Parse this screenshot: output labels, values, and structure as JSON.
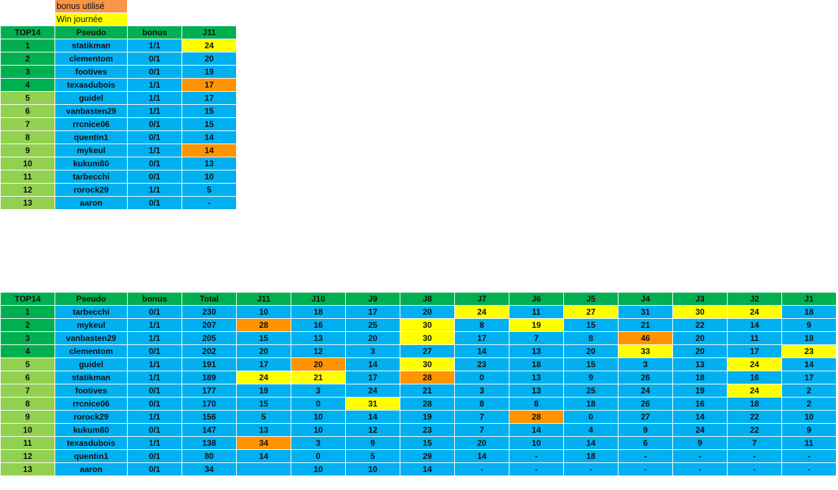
{
  "legend": {
    "bonus_label": "bonus utilisé",
    "bonus_color": "#f79646",
    "win_label": "Win journée",
    "win_color": "#ffff00"
  },
  "colors": {
    "header": "#00b050",
    "top4": "#00b050",
    "rest": "#92d050",
    "cell": "#00b0f0",
    "bonus": "#ff9400",
    "win": "#ffff00"
  },
  "table1": {
    "headers": [
      "TOP14",
      "Pseudo",
      "bonus",
      "J11"
    ],
    "rows": [
      {
        "rank": "1",
        "pseudo": "statikman",
        "bonus": "1/1",
        "j11": "24",
        "hl": "yellow"
      },
      {
        "rank": "2",
        "pseudo": "clementom",
        "bonus": "0/1",
        "j11": "20",
        "hl": ""
      },
      {
        "rank": "3",
        "pseudo": "footives",
        "bonus": "0/1",
        "j11": "19",
        "hl": ""
      },
      {
        "rank": "4",
        "pseudo": "texasdubois",
        "bonus": "1/1",
        "j11": "17",
        "hl": "orange"
      },
      {
        "rank": "5",
        "pseudo": "guidel",
        "bonus": "1/1",
        "j11": "17",
        "hl": ""
      },
      {
        "rank": "6",
        "pseudo": "vanbasten29",
        "bonus": "1/1",
        "j11": "15",
        "hl": ""
      },
      {
        "rank": "7",
        "pseudo": "rrcnice06",
        "bonus": "0/1",
        "j11": "15",
        "hl": ""
      },
      {
        "rank": "8",
        "pseudo": "quentin1",
        "bonus": "0/1",
        "j11": "14",
        "hl": ""
      },
      {
        "rank": "9",
        "pseudo": "mykeul",
        "bonus": "1/1",
        "j11": "14",
        "hl": "orange"
      },
      {
        "rank": "10",
        "pseudo": "kukum80",
        "bonus": "0/1",
        "j11": "13",
        "hl": ""
      },
      {
        "rank": "11",
        "pseudo": "tarbecchi",
        "bonus": "0/1",
        "j11": "10",
        "hl": ""
      },
      {
        "rank": "12",
        "pseudo": "rorock29",
        "bonus": "1/1",
        "j11": "5",
        "hl": ""
      },
      {
        "rank": "13",
        "pseudo": "aaron",
        "bonus": "0/1",
        "j11": "-",
        "hl": ""
      }
    ]
  },
  "table2": {
    "headers": [
      "TOP14",
      "Pseudo",
      "bonus",
      "Total",
      "J11",
      "J10",
      "J9",
      "J8",
      "J7",
      "J6",
      "J5",
      "J4",
      "J3",
      "J2",
      "J1"
    ],
    "rows": [
      {
        "rank": "1",
        "pseudo": "tarbecchi",
        "bonus": "0/1",
        "total": "230",
        "days": [
          "10",
          "18",
          "17",
          "20",
          "24",
          "11",
          "27",
          "31",
          "30",
          "24",
          "18"
        ],
        "hl": [
          "",
          "",
          "",
          "",
          "yellow",
          "",
          "yellow",
          "",
          "yellow",
          "yellow",
          ""
        ]
      },
      {
        "rank": "2",
        "pseudo": "mykeul",
        "bonus": "1/1",
        "total": "207",
        "days": [
          "28",
          "16",
          "25",
          "30",
          "8",
          "19",
          "15",
          "21",
          "22",
          "14",
          "9"
        ],
        "hl": [
          "orange",
          "",
          "",
          "yellow",
          "",
          "yellow",
          "",
          "",
          "",
          "",
          ""
        ]
      },
      {
        "rank": "3",
        "pseudo": "vanbasten29",
        "bonus": "1/1",
        "total": "205",
        "days": [
          "15",
          "13",
          "20",
          "30",
          "17",
          "7",
          "8",
          "46",
          "20",
          "11",
          "18"
        ],
        "hl": [
          "",
          "",
          "",
          "yellow",
          "",
          "",
          "",
          "orange",
          "",
          "",
          ""
        ]
      },
      {
        "rank": "4",
        "pseudo": "clementom",
        "bonus": "0/1",
        "total": "202",
        "days": [
          "20",
          "12",
          "3",
          "27",
          "14",
          "13",
          "20",
          "33",
          "20",
          "17",
          "23"
        ],
        "hl": [
          "",
          "",
          "",
          "",
          "",
          "",
          "",
          "yellow",
          "",
          "",
          "yellow"
        ]
      },
      {
        "rank": "5",
        "pseudo": "guidel",
        "bonus": "1/1",
        "total": "191",
        "days": [
          "17",
          "20",
          "14",
          "30",
          "23",
          "18",
          "15",
          "3",
          "13",
          "24",
          "14"
        ],
        "hl": [
          "",
          "orange",
          "",
          "yellow",
          "",
          "",
          "",
          "",
          "",
          "yellow",
          ""
        ]
      },
      {
        "rank": "6",
        "pseudo": "statikman",
        "bonus": "1/1",
        "total": "189",
        "days": [
          "24",
          "21",
          "17",
          "28",
          "0",
          "13",
          "9",
          "26",
          "18",
          "16",
          "17"
        ],
        "hl": [
          "yellow",
          "yellow",
          "",
          "orange",
          "",
          "",
          "",
          "",
          "",
          "",
          ""
        ]
      },
      {
        "rank": "7",
        "pseudo": "footives",
        "bonus": "0/1",
        "total": "177",
        "days": [
          "19",
          "3",
          "24",
          "21",
          "3",
          "13",
          "25",
          "24",
          "19",
          "24",
          "2"
        ],
        "hl": [
          "",
          "",
          "",
          "",
          "",
          "",
          "",
          "",
          "",
          "yellow",
          ""
        ]
      },
      {
        "rank": "8",
        "pseudo": "rrcnice06",
        "bonus": "0/1",
        "total": "170",
        "days": [
          "15",
          "0",
          "31",
          "28",
          "8",
          "8",
          "18",
          "26",
          "16",
          "18",
          "2"
        ],
        "hl": [
          "",
          "",
          "yellow",
          "",
          "",
          "",
          "",
          "",
          "",
          "",
          ""
        ]
      },
      {
        "rank": "9",
        "pseudo": "rorock29",
        "bonus": "1/1",
        "total": "156",
        "days": [
          "5",
          "10",
          "14",
          "19",
          "7",
          "28",
          "0",
          "27",
          "14",
          "22",
          "10"
        ],
        "hl": [
          "",
          "",
          "",
          "",
          "",
          "orange",
          "",
          "",
          "",
          "",
          ""
        ]
      },
      {
        "rank": "10",
        "pseudo": "kukum80",
        "bonus": "0/1",
        "total": "147",
        "days": [
          "13",
          "10",
          "12",
          "23",
          "7",
          "14",
          "4",
          "9",
          "24",
          "22",
          "9"
        ],
        "hl": [
          "",
          "",
          "",
          "",
          "",
          "",
          "",
          "",
          "",
          "",
          ""
        ]
      },
      {
        "rank": "11",
        "pseudo": "texasdubois",
        "bonus": "1/1",
        "total": "138",
        "days": [
          "34",
          "3",
          "9",
          "15",
          "20",
          "10",
          "14",
          "6",
          "9",
          "7",
          "11"
        ],
        "hl": [
          "orange",
          "",
          "",
          "",
          "",
          "",
          "",
          "",
          "",
          "",
          ""
        ]
      },
      {
        "rank": "12",
        "pseudo": "quentin1",
        "bonus": "0/1",
        "total": "80",
        "days": [
          "14",
          "0",
          "5",
          "29",
          "14",
          "-",
          "18",
          "-",
          "-",
          "-",
          "-"
        ],
        "hl": [
          "",
          "",
          "",
          "",
          "",
          "",
          "",
          "",
          "",
          "",
          ""
        ]
      },
      {
        "rank": "13",
        "pseudo": "aaron",
        "bonus": "0/1",
        "total": "34",
        "days": [
          "",
          "10",
          "10",
          "14",
          "-",
          "-",
          "-",
          "-",
          "-",
          "-",
          "-"
        ],
        "hl": [
          "",
          "",
          "",
          "",
          "",
          "",
          "",
          "",
          "",
          "",
          ""
        ]
      }
    ]
  }
}
